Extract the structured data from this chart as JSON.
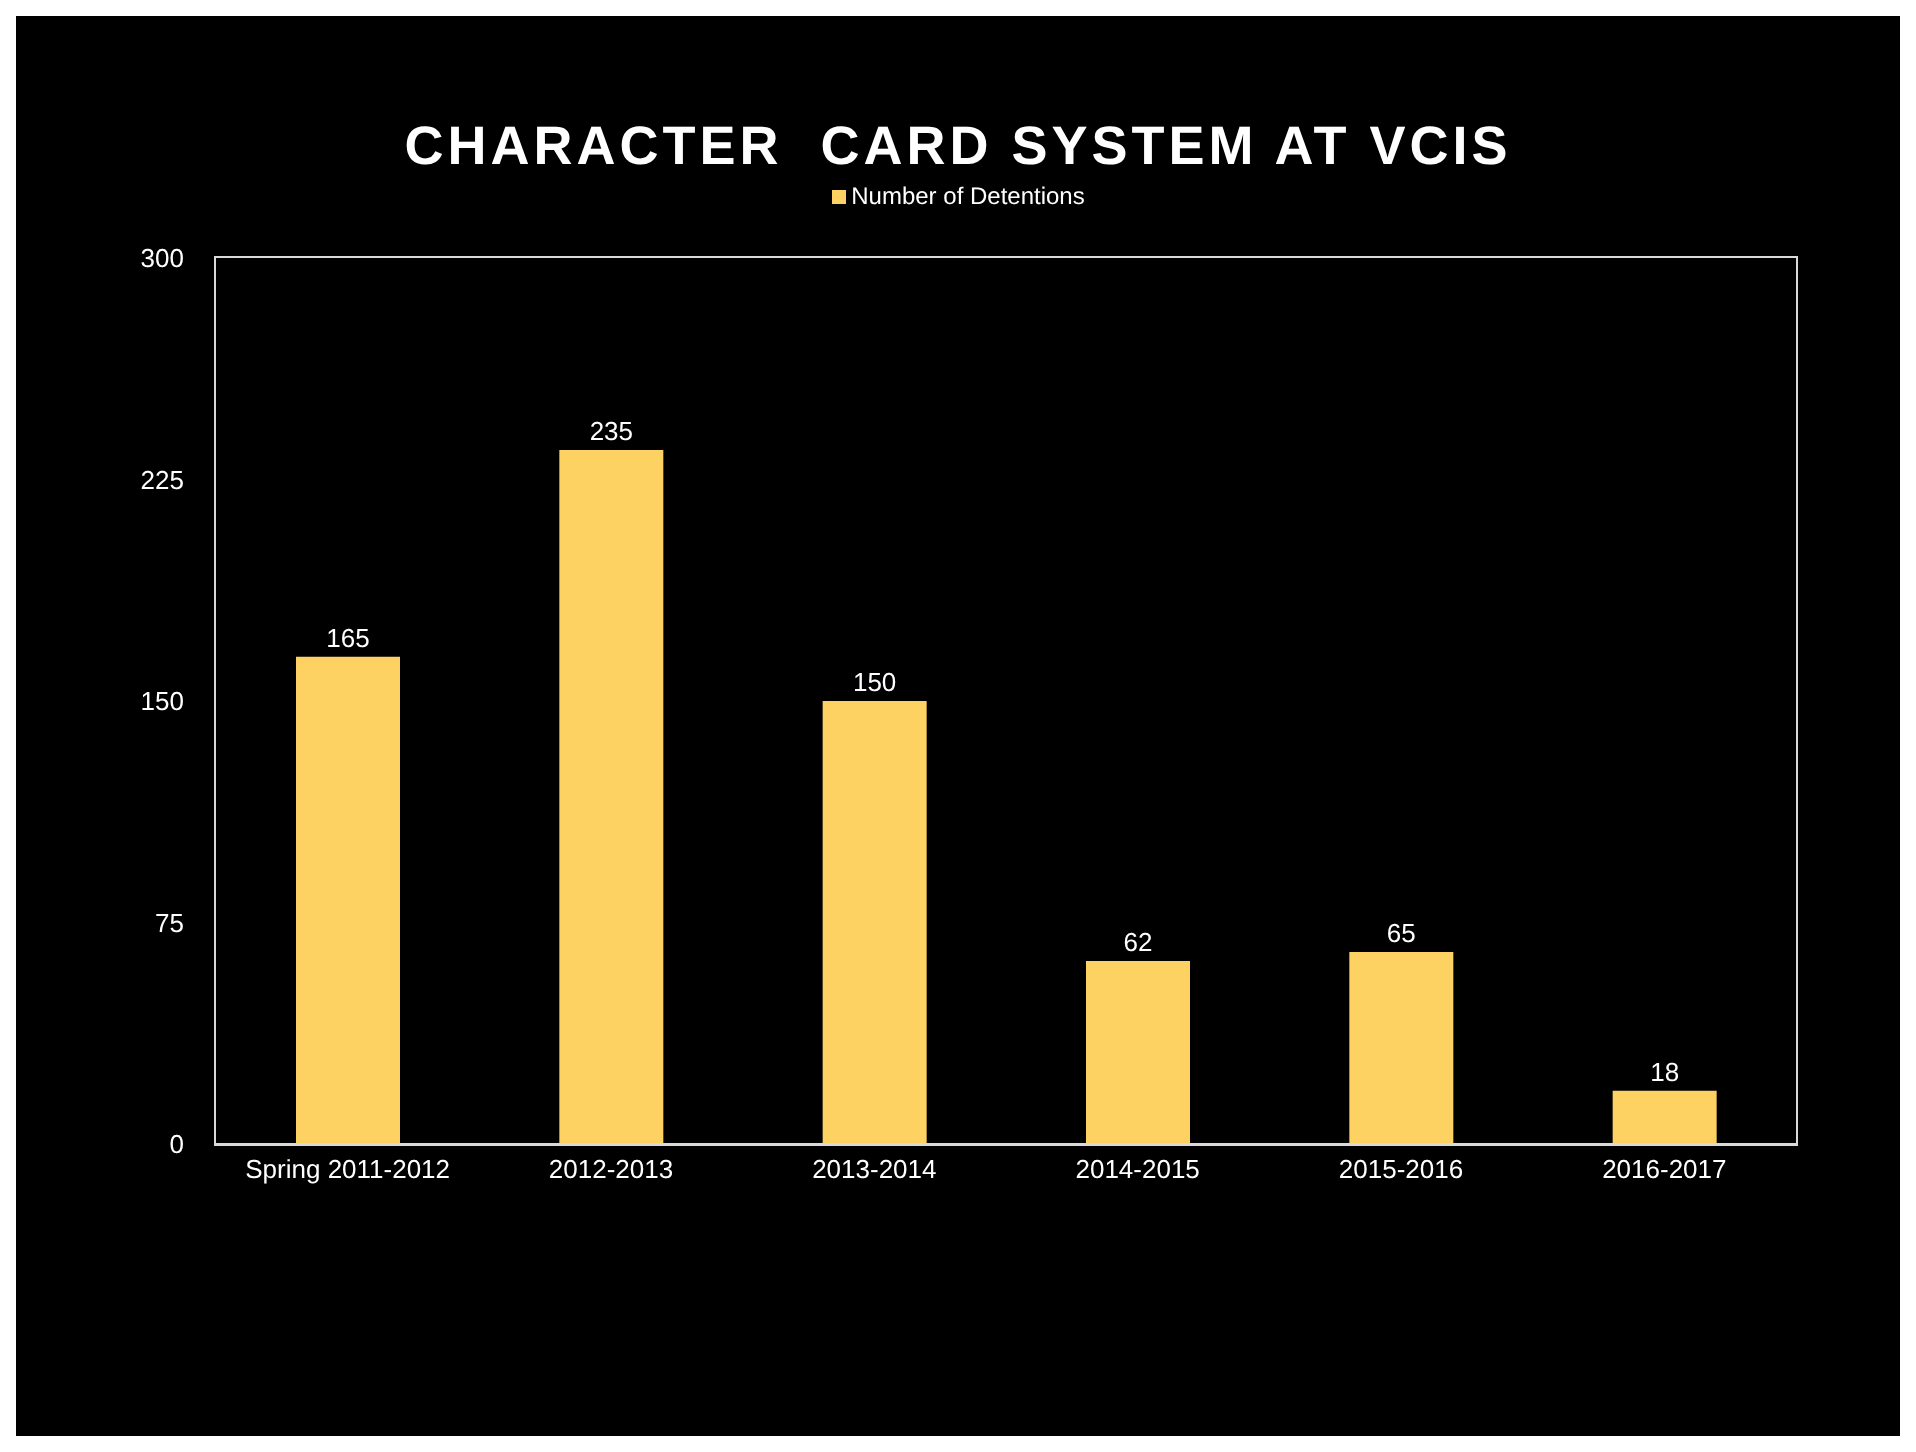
{
  "chart_data": {
    "type": "bar",
    "title": "CHARACTER  CARD SYSTEM AT VCIS",
    "categories": [
      "Spring 2011-2012",
      "2012-2013",
      "2013-2014",
      "2014-2015",
      "2015-2016",
      "2016-2017"
    ],
    "series": [
      {
        "name": "Number of Detentions",
        "color": "#fdd263",
        "values": [
          165,
          235,
          150,
          62,
          65,
          18
        ]
      }
    ],
    "ylim": [
      0,
      300
    ],
    "yticks": [
      0,
      75,
      150,
      225,
      300
    ],
    "legend": "top",
    "data_labels": true
  }
}
